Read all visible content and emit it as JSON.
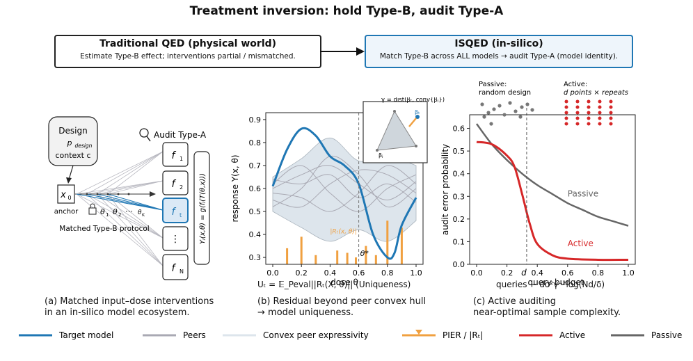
{
  "title": "Treatment inversion: hold Type-B, audit Type-A",
  "left_box": {
    "heading": "Traditional QED (physical world)",
    "sub": "Estimate Type-B effect; interventions partial / mismatched."
  },
  "right_box": {
    "heading": "ISQED (in-silico)",
    "sub": "Match Type-B across ALL models → audit Type-A (model identity)."
  },
  "panel_a": {
    "design_title": "Design",
    "design_p": "p",
    "design_p_sub": "design",
    "design_context": "context c",
    "anchor_x": "x",
    "anchor_x_sub": "0",
    "anchor_label": "anchor",
    "audit_label": "Audit Type-A",
    "models": [
      "f",
      "f",
      "f",
      "⋮",
      "f"
    ],
    "model_subs": [
      "1",
      "2",
      "t",
      "",
      "N"
    ],
    "thetas": [
      "θ",
      "θ",
      "⋯",
      "θ"
    ],
    "theta_subs": [
      "1",
      "2",
      "",
      "K"
    ],
    "protocol_label": "Matched Type-B protocol",
    "response_formula": "Yⱼ(x,θ) = g(fⱼ(T(θ,x)))",
    "caption_line1": "(a) Matched input–dose interventions",
    "caption_line2": "in an in-silico model ecosystem."
  },
  "panel_b": {
    "ylabel": "response Y(x, θ)",
    "xlabel": "dose θ",
    "y_ticks": [
      "0.3",
      "0.4",
      "0.5",
      "0.6",
      "0.7",
      "0.8",
      "0.9"
    ],
    "x_ticks": [
      "0.0",
      "0.2",
      "0.4",
      "0.6",
      "0.8",
      "1.0"
    ],
    "theta_star": "θ*",
    "pier_label": "|Rₜ(x, θ)|",
    "inset_label": "γ = dist(βₜ, conv{βⱼ})",
    "inset_bt": "βₜ",
    "inset_bj": "βⱼ",
    "formula": "Uₜ = 𝔼_Peval||Rₜ(X, θ)||  (Uniqueness)",
    "caption_line1": "(b) Residual beyond peer convex hull",
    "caption_line2": "→ model uniqueness."
  },
  "panel_c": {
    "ylabel": "audit error probability",
    "xlabel": "query budget",
    "y_ticks": [
      "0.0",
      "0.1",
      "0.2",
      "0.3",
      "0.4",
      "0.5",
      "0.6"
    ],
    "x_ticks": [
      "0.0",
      "0.2",
      "0.4",
      "0.6",
      "0.8",
      "1.0"
    ],
    "d_label": "d",
    "passive_label": "Passive",
    "active_label": "Active",
    "passive_note_1": "Passive:",
    "passive_note_2": "random design",
    "active_note_1": "Active:",
    "active_note_2": "d points × repeats",
    "queries_formula": "queries ~ dσ²γ⁻²log(Nd/δ)",
    "caption_line1": "(c) Active auditing",
    "caption_line2": "near-optimal sample complexity."
  },
  "legend": [
    {
      "label": "Target model",
      "color": "#1f77b4"
    },
    {
      "label": "Peers",
      "color": "#a9a9b3"
    },
    {
      "label": "Convex peer expressivity",
      "color": "#dde5ec"
    },
    {
      "label": "PIER / |Rₜ|",
      "color": "#f0a040"
    },
    {
      "label": "Active",
      "color": "#d62728"
    },
    {
      "label": "Passive",
      "color": "#666666"
    }
  ],
  "colors": {
    "target": "#1f77b4",
    "peer": "#a9a9b3",
    "hull": "#dde5ec",
    "pier": "#f0a040",
    "active": "#d62728",
    "passive": "#666666"
  },
  "chart_data": [
    {
      "type": "line",
      "xlabel": "dose θ",
      "ylabel": "response Y(x, θ)",
      "xlim": [
        0,
        1
      ],
      "ylim": [
        0.27,
        0.93
      ],
      "series": [
        {
          "name": "Target model",
          "x": [
            0.0,
            0.1,
            0.2,
            0.3,
            0.4,
            0.5,
            0.6,
            0.7,
            0.8,
            0.85,
            0.9,
            1.0
          ],
          "values": [
            0.61,
            0.77,
            0.86,
            0.83,
            0.74,
            0.7,
            0.62,
            0.4,
            0.3,
            0.32,
            0.44,
            0.56
          ]
        }
      ],
      "peer_band": {
        "x": [
          0.0,
          0.2,
          0.4,
          0.6,
          0.8,
          1.0
        ],
        "upper": [
          0.65,
          0.73,
          0.82,
          0.72,
          0.74,
          0.7
        ],
        "lower": [
          0.5,
          0.43,
          0.37,
          0.42,
          0.37,
          0.46
        ]
      },
      "pier_bars": {
        "x": [
          0.1,
          0.2,
          0.3,
          0.45,
          0.52,
          0.58,
          0.65,
          0.72,
          0.8,
          0.9
        ],
        "values": [
          0.34,
          0.39,
          0.31,
          0.33,
          0.32,
          0.3,
          0.35,
          0.31,
          0.46,
          0.43
        ]
      },
      "theta_star": 0.6
    },
    {
      "type": "line",
      "xlabel": "query budget",
      "ylabel": "audit error probability",
      "xlim": [
        0,
        1
      ],
      "ylim": [
        0,
        0.66
      ],
      "series": [
        {
          "name": "Passive",
          "x": [
            0.0,
            0.1,
            0.2,
            0.3,
            0.4,
            0.5,
            0.6,
            0.7,
            0.8,
            0.9,
            1.0
          ],
          "values": [
            0.62,
            0.53,
            0.46,
            0.4,
            0.35,
            0.31,
            0.27,
            0.24,
            0.21,
            0.19,
            0.17
          ]
        },
        {
          "name": "Active",
          "x": [
            0.0,
            0.1,
            0.2,
            0.25,
            0.3,
            0.35,
            0.4,
            0.5,
            0.6,
            0.8,
            1.0
          ],
          "values": [
            0.54,
            0.53,
            0.48,
            0.43,
            0.31,
            0.18,
            0.09,
            0.04,
            0.025,
            0.02,
            0.02
          ]
        }
      ],
      "d_marker": 0.33
    }
  ]
}
